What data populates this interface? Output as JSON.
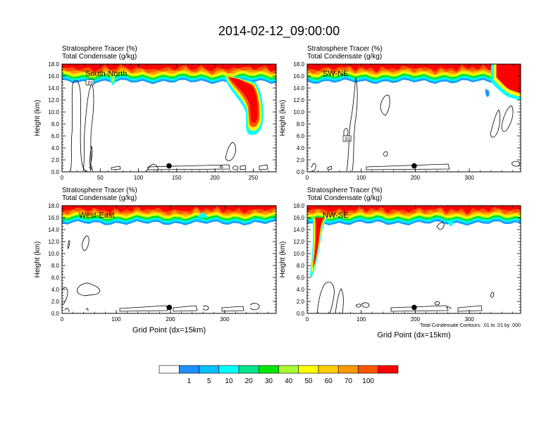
{
  "title": "2014-02-12_09:00:00",
  "chart_data": [
    {
      "type": "heatmap",
      "label_line1": "Stratosphere Tracer   (%)",
      "label_line2": "Total Condensate   (g/kg)",
      "panel_label": "South-North",
      "ylabel": "Height (km)",
      "xlabel": "",
      "xlim": [
        0,
        280
      ],
      "ylim": [
        0,
        18
      ],
      "xticks": [
        "0",
        "50",
        "100",
        "150",
        "200",
        "250"
      ],
      "xtick_values": [
        0,
        50,
        100,
        150,
        200,
        250
      ],
      "yticks": [
        "0.0",
        "2.0",
        "4.0",
        "6.0",
        "8.0",
        "10.0",
        "12.0",
        "14.0",
        "16.0",
        "18.0"
      ],
      "marker": [
        140,
        1.0
      ],
      "contour_label": ".01",
      "footnote": ""
    },
    {
      "type": "heatmap",
      "label_line1": "Stratosphere Tracer   (%)",
      "label_line2": "Total Condensate   (g/kg)",
      "panel_label": "SW-NE",
      "ylabel": "Height (km)",
      "xlabel": "",
      "xlim": [
        0,
        395
      ],
      "ylim": [
        0,
        18
      ],
      "xticks": [
        "0",
        "100",
        "200",
        "300"
      ],
      "xtick_values": [
        0,
        100,
        200,
        300
      ],
      "yticks": [
        "0.0",
        "2.0",
        "4.0",
        "6.0",
        "8.0",
        "10.0",
        "12.0",
        "14.0",
        "16.0",
        "18.0"
      ],
      "marker": [
        198,
        1.0
      ],
      "contour_label": ".01",
      "footnote": ""
    },
    {
      "type": "heatmap",
      "label_line1": "Stratosphere Tracer   (%)",
      "label_line2": "Total Condensate   (g/kg)",
      "panel_label": "West-East",
      "ylabel": "Height (km)",
      "xlabel": "Grid Point (dx=15km)",
      "xlim": [
        0,
        395
      ],
      "ylim": [
        0,
        18
      ],
      "xticks": [
        "0",
        "100",
        "200",
        "300"
      ],
      "xtick_values": [
        0,
        100,
        200,
        300
      ],
      "yticks": [
        "0.0",
        "2.0",
        "4.0",
        "6.0",
        "8.0",
        "10.0",
        "12.0",
        "14.0",
        "16.0",
        "18.0"
      ],
      "marker": [
        198,
        1.0
      ],
      "contour_label": "",
      "footnote": ""
    },
    {
      "type": "heatmap",
      "label_line1": "Stratosphere Tracer   (%)",
      "label_line2": "Total Condensate   (g/kg)",
      "panel_label": "NW-SE",
      "ylabel": "Height (km)",
      "xlabel": "Grid Point (dx=15km)",
      "xlim": [
        0,
        395
      ],
      "ylim": [
        0,
        18
      ],
      "xticks": [
        "0",
        "100",
        "200",
        "300"
      ],
      "xtick_values": [
        0,
        100,
        200,
        300
      ],
      "yticks": [
        "0.0",
        "2.0",
        "4.0",
        "6.0",
        "8.0",
        "10.0",
        "12.0",
        "14.0",
        "16.0",
        "18.0"
      ],
      "marker": [
        198,
        1.0
      ],
      "contour_label": "",
      "footnote": "Total Condensate Contours: .01 to .01 by .000"
    }
  ],
  "colorbar": {
    "levels": [
      "1",
      "5",
      "10",
      "20",
      "30",
      "40",
      "50",
      "60",
      "70",
      "100"
    ],
    "colors": [
      "#ffffff",
      "#1e90ff",
      "#00bfff",
      "#00ffff",
      "#00e68c",
      "#00e600",
      "#aaff33",
      "#ffff00",
      "#ffcc00",
      "#ff9900",
      "#ff5500",
      "#ff0000"
    ]
  }
}
